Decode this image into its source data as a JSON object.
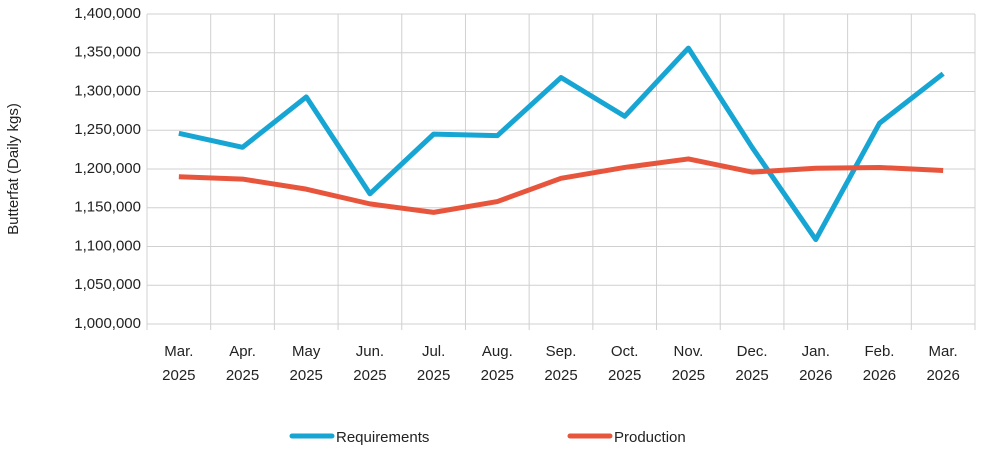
{
  "chart_data": {
    "type": "line",
    "ylabel": "Butterfat (Daily kgs)",
    "categories": [
      "Mar. 2025",
      "Apr. 2025",
      "May 2025",
      "Jun. 2025",
      "Jul. 2025",
      "Aug. 2025",
      "Sep. 2025",
      "Oct. 2025",
      "Nov. 2025",
      "Dec. 2025",
      "Jan. 2026",
      "Feb. 2026",
      "Mar. 2026"
    ],
    "series": [
      {
        "name": "Requirements",
        "color": "#17a5d3",
        "values": [
          1246000,
          1228000,
          1293000,
          1168000,
          1245000,
          1243000,
          1318000,
          1268000,
          1356000,
          1228000,
          1109000,
          1259000,
          1323000
        ]
      },
      {
        "name": "Production",
        "color": "#e8553d",
        "values": [
          1190000,
          1187000,
          1174000,
          1155000,
          1144000,
          1158000,
          1188000,
          1202000,
          1213000,
          1196000,
          1201000,
          1202000,
          1198000
        ]
      }
    ],
    "ylim": [
      1000000,
      1400000
    ],
    "yticks": [
      {
        "value": 1000000,
        "label": "1,000,000"
      },
      {
        "value": 1050000,
        "label": "1,050,000"
      },
      {
        "value": 1100000,
        "label": "1,100,000"
      },
      {
        "value": 1150000,
        "label": "1,150,000"
      },
      {
        "value": 1200000,
        "label": "1,200,000"
      },
      {
        "value": 1250000,
        "label": "1,250,000"
      },
      {
        "value": 1300000,
        "label": "1,300,000"
      },
      {
        "value": 1350000,
        "label": "1,350,000"
      },
      {
        "value": 1400000,
        "label": "1,400,000"
      }
    ],
    "grid": true,
    "legend": "bottom"
  }
}
